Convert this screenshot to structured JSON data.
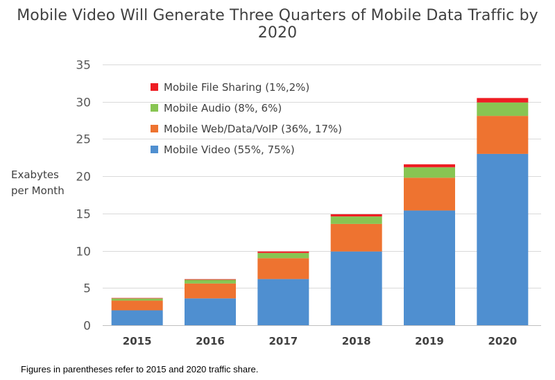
{
  "chart_data": {
    "type": "bar",
    "stacked": true,
    "title": "Mobile Video Will Generate Three Quarters of Mobile Data Traffic by 2020",
    "ylabel": [
      "Exabytes",
      "per Month"
    ],
    "xlabel": "",
    "ylim": [
      0,
      35
    ],
    "yticks": [
      0,
      5,
      10,
      15,
      20,
      25,
      30,
      35
    ],
    "categories": [
      "2015",
      "2016",
      "2017",
      "2018",
      "2019",
      "2020"
    ],
    "series": [
      {
        "name": "Mobile Video (55%, 75%)",
        "color": "#4f8fd0",
        "values": [
          2.0,
          3.6,
          6.2,
          9.9,
          15.4,
          23.0
        ]
      },
      {
        "name": "Mobile Web/Data/VoIP (36%, 17%)",
        "color": "#ee7330",
        "values": [
          1.3,
          2.0,
          2.8,
          3.7,
          4.4,
          5.1
        ]
      },
      {
        "name": "Mobile Audio (8%, 6%)",
        "color": "#88c552",
        "values": [
          0.3,
          0.5,
          0.7,
          1.0,
          1.4,
          1.8
        ]
      },
      {
        "name": "Mobile File Sharing (1%,2%)",
        "color": "#ee1d23",
        "values": [
          0.06,
          0.08,
          0.2,
          0.3,
          0.4,
          0.6
        ]
      }
    ],
    "legend_position": "top-left inside",
    "legend_order": [
      3,
      2,
      1,
      0
    ],
    "gridlines": true
  },
  "footnote": "Figures in parentheses refer to 2015 and 2020 traffic share."
}
